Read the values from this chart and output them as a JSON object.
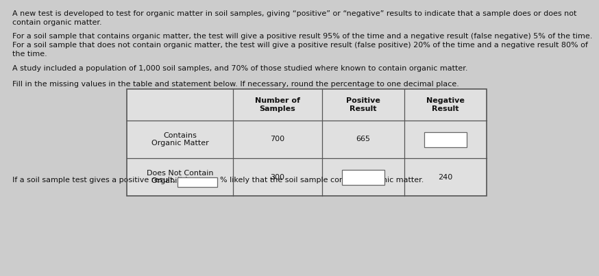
{
  "background_color": "#cccccc",
  "table_bg": "#e0e0e0",
  "text_color": "#111111",
  "para1_line1": "A new test is developed to test for organic matter in soil samples, giving “positive” or “negative” results to indicate that a sample does or does not",
  "para1_line2": "contain organic matter.",
  "para2_line1": "For a soil sample that contains organic matter, the test will give a positive result 95% of the time and a negative result (false negative) 5% of the time.",
  "para2_line2": "For a soil sample that does not contain organic matter, the test will give a positive result (false positive) 20% of the time and a negative result 80% of",
  "para2_line3": "the time.",
  "para3": "A study included a population of 1,000 soil samples, and 70% of those studied where known to contain organic matter.",
  "instruction": "Fill in the missing values in the table and statement below. If necessary, round the percentage to one decimal place.",
  "col0_header": "",
  "col1_header": "Number of\nSamples",
  "col2_header": "Positive\nResult",
  "col3_header": "Negative\nResult",
  "row1_label": "Contains\nOrganic Matter",
  "row1_c1": "700",
  "row1_c2": "665",
  "row1_c3": "",
  "row2_label": "Does Not Contain\nOrganic Matter",
  "row2_c1": "300",
  "row2_c2": "",
  "row2_c3": "240",
  "footer_pre": "If a soil sample test gives a positive result, it is",
  "footer_post": "% likely that the soil sample contains organic matter.",
  "font_size": 8.0
}
